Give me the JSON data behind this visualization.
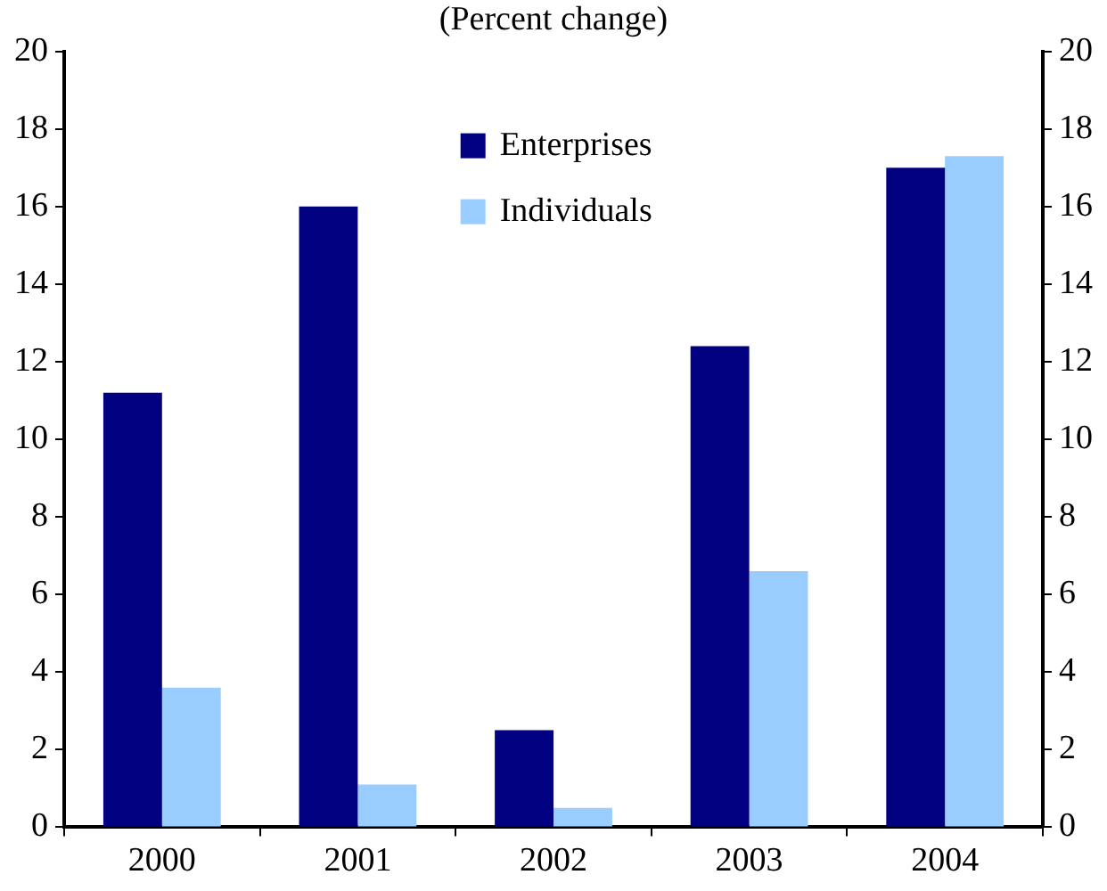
{
  "chart_data": {
    "type": "bar",
    "title": "(Percent change)",
    "categories": [
      "2000",
      "2001",
      "2002",
      "2003",
      "2004"
    ],
    "series": [
      {
        "name": "Enterprises",
        "color": "#000080",
        "values": [
          11.2,
          16.0,
          2.5,
          12.4,
          17.0
        ]
      },
      {
        "name": "Individuals",
        "color": "#99ccff",
        "values": [
          3.6,
          1.1,
          0.5,
          6.6,
          17.3
        ]
      }
    ],
    "ylim": [
      0,
      20
    ],
    "yticks": [
      0,
      2,
      4,
      6,
      8,
      10,
      12,
      14,
      16,
      18,
      20
    ],
    "y2lim": [
      0,
      20
    ],
    "y2ticks": [
      0,
      2,
      4,
      6,
      8,
      10,
      12,
      14,
      16,
      18,
      20
    ],
    "grid": false,
    "legend": "top"
  }
}
